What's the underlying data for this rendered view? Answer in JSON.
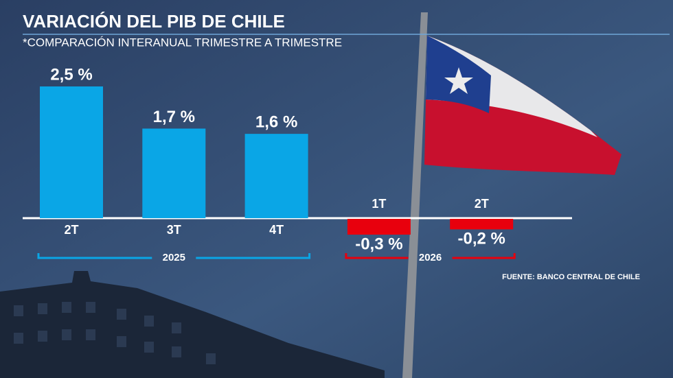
{
  "chart_data": {
    "type": "bar",
    "title": "VARIACIÓN DEL PIB DE CHILE",
    "subtitle": "*COMPARACIÓN INTERANUAL TRIMESTRE A TRIMESTRE",
    "categories": [
      "2T",
      "3T",
      "4T",
      "1T",
      "2T"
    ],
    "values": [
      2.5,
      1.7,
      1.6,
      -0.3,
      -0.2
    ],
    "value_labels": [
      "2,5 %",
      "1,7 %",
      "1,6 %",
      "-0,3 %",
      "-0,2 %"
    ],
    "color": "#0aa6e6",
    "negative_color": "#e8000d",
    "groups": [
      {
        "label": "2025",
        "color": "#0aa6e6",
        "size": 3
      },
      {
        "label": "2026",
        "color": "#e8000d",
        "size": 2
      }
    ],
    "source": "FUENTE: BANCO CENTRAL DE CHILE"
  }
}
